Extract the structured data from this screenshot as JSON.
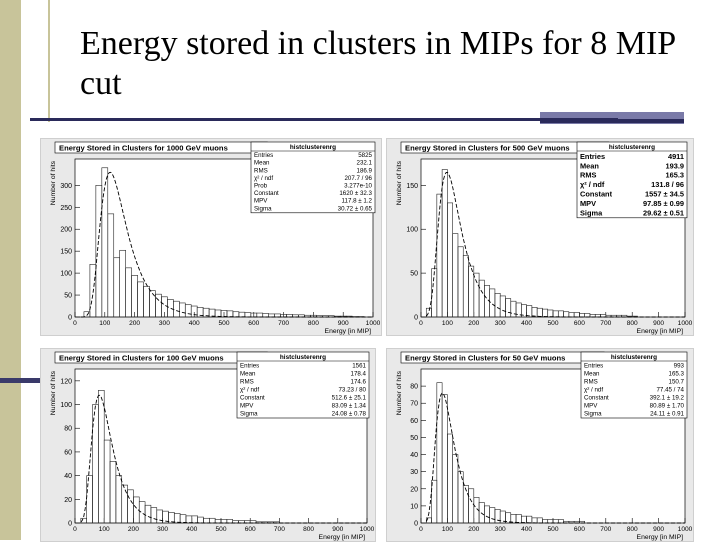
{
  "slide": {
    "title": "Energy stored in clusters in MIPs for 8 MIP cut"
  },
  "chart_data": [
    {
      "type": "bar",
      "title": "Energy Stored in Clusters for 1000 GeV muons",
      "histname": "histclusterenrg",
      "xlabel": "Energy [in MIP]",
      "ylabel": "Number of hits",
      "xlim": [
        0,
        1000
      ],
      "ylim": [
        0,
        360
      ],
      "xticks": [
        0,
        100,
        200,
        300,
        400,
        500,
        600,
        700,
        800,
        900,
        1000
      ],
      "yticks": [
        0,
        50,
        100,
        150,
        200,
        250,
        300
      ],
      "stats": [
        [
          "Entries",
          "5825"
        ],
        [
          "Mean",
          "232.1"
        ],
        [
          "RMS",
          "186.9"
        ],
        [
          "χ² / ndf",
          "207.7 / 96"
        ],
        [
          "Prob",
          "3.277e-10"
        ],
        [
          "Constant",
          "1620 ± 32.3"
        ],
        [
          "MPV",
          "117.8 ± 1.2"
        ],
        [
          "Sigma",
          "30.72 ± 0.65"
        ]
      ],
      "fit": {
        "mpv": 117.8,
        "sigma": 30.72,
        "peak": 330
      },
      "hist": [
        [
          40,
          12
        ],
        [
          60,
          120
        ],
        [
          80,
          300
        ],
        [
          100,
          340
        ],
        [
          120,
          235
        ],
        [
          140,
          135
        ],
        [
          160,
          152
        ],
        [
          180,
          112
        ],
        [
          200,
          95
        ],
        [
          220,
          80
        ],
        [
          240,
          70
        ],
        [
          260,
          60
        ],
        [
          280,
          52
        ],
        [
          300,
          46
        ],
        [
          320,
          40
        ],
        [
          340,
          36
        ],
        [
          360,
          32
        ],
        [
          380,
          28
        ],
        [
          400,
          25
        ],
        [
          420,
          22
        ],
        [
          440,
          20
        ],
        [
          460,
          18
        ],
        [
          480,
          16
        ],
        [
          500,
          15
        ],
        [
          520,
          14
        ],
        [
          540,
          12
        ],
        [
          560,
          11
        ],
        [
          580,
          10
        ],
        [
          600,
          9
        ],
        [
          620,
          9
        ],
        [
          640,
          8
        ],
        [
          660,
          7
        ],
        [
          680,
          7
        ],
        [
          700,
          6
        ],
        [
          720,
          6
        ],
        [
          740,
          5
        ],
        [
          760,
          5
        ],
        [
          780,
          4
        ],
        [
          800,
          4
        ],
        [
          820,
          3
        ],
        [
          840,
          3
        ],
        [
          860,
          3
        ],
        [
          880,
          2
        ],
        [
          900,
          2
        ],
        [
          920,
          2
        ],
        [
          940,
          1
        ],
        [
          960,
          1
        ]
      ]
    },
    {
      "type": "bar",
      "title": "Energy Stored in Clusters for 500 GeV muons",
      "histname": "histclusterenrg",
      "xlabel": "Energy [in MIP]",
      "ylabel": "Number of hits",
      "xlim": [
        0,
        1000
      ],
      "ylim": [
        0,
        180
      ],
      "xticks": [
        0,
        100,
        200,
        300,
        400,
        500,
        600,
        700,
        800,
        900,
        1000
      ],
      "yticks": [
        0,
        50,
        100,
        150
      ],
      "stats": [
        [
          "Entries",
          "4911"
        ],
        [
          "Mean",
          "193.9"
        ],
        [
          "RMS",
          "165.3"
        ],
        [
          "χ² / ndf",
          "131.8 / 96"
        ],
        [
          "Constant",
          "1557 ± 34.5"
        ],
        [
          "MPV",
          "97.85 ± 0.99"
        ],
        [
          "Sigma",
          "29.62 ± 0.51"
        ]
      ],
      "fit": {
        "mpv": 97.85,
        "sigma": 29.62,
        "peak": 165
      },
      "hist": [
        [
          30,
          10
        ],
        [
          50,
          55
        ],
        [
          70,
          140
        ],
        [
          90,
          168
        ],
        [
          110,
          130
        ],
        [
          130,
          95
        ],
        [
          150,
          80
        ],
        [
          170,
          70
        ],
        [
          190,
          58
        ],
        [
          210,
          50
        ],
        [
          230,
          42
        ],
        [
          250,
          36
        ],
        [
          270,
          32
        ],
        [
          290,
          27
        ],
        [
          310,
          24
        ],
        [
          330,
          21
        ],
        [
          350,
          18
        ],
        [
          370,
          16
        ],
        [
          390,
          14
        ],
        [
          410,
          13
        ],
        [
          430,
          11
        ],
        [
          450,
          10
        ],
        [
          470,
          9
        ],
        [
          490,
          8
        ],
        [
          510,
          7
        ],
        [
          530,
          7
        ],
        [
          550,
          6
        ],
        [
          570,
          5
        ],
        [
          590,
          5
        ],
        [
          610,
          4
        ],
        [
          630,
          4
        ],
        [
          650,
          3
        ],
        [
          670,
          3
        ],
        [
          690,
          3
        ],
        [
          710,
          2
        ],
        [
          730,
          2
        ],
        [
          750,
          2
        ],
        [
          770,
          2
        ],
        [
          790,
          1
        ],
        [
          810,
          1
        ]
      ]
    },
    {
      "type": "bar",
      "title": "Energy Stored in Clusters for 100  GeV muons",
      "histname": "histclusterenrg",
      "xlabel": "Energy [in MIP]",
      "ylabel": "Number of hits",
      "xlim": [
        0,
        1000
      ],
      "ylim": [
        0,
        130
      ],
      "xticks": [
        0,
        100,
        200,
        300,
        400,
        500,
        600,
        700,
        800,
        900,
        1000
      ],
      "yticks": [
        0,
        20,
        40,
        60,
        80,
        100,
        120
      ],
      "stats": [
        [
          "Entries",
          "1561"
        ],
        [
          "Mean",
          "178.4"
        ],
        [
          "RMS",
          "174.6"
        ],
        [
          "χ² / ndf",
          "73.23 / 80"
        ],
        [
          "Constant",
          "512.6 ± 25.1"
        ],
        [
          "MPV",
          "83.09 ± 1.34"
        ],
        [
          "Sigma",
          "24.08 ± 0.78"
        ]
      ],
      "fit": {
        "mpv": 83.09,
        "sigma": 24.08,
        "peak": 108
      },
      "hist": [
        [
          30,
          4
        ],
        [
          50,
          40
        ],
        [
          70,
          100
        ],
        [
          90,
          112
        ],
        [
          110,
          70
        ],
        [
          130,
          52
        ],
        [
          150,
          40
        ],
        [
          170,
          32
        ],
        [
          190,
          28
        ],
        [
          210,
          22
        ],
        [
          230,
          18
        ],
        [
          250,
          15
        ],
        [
          270,
          13
        ],
        [
          290,
          11
        ],
        [
          310,
          10
        ],
        [
          330,
          9
        ],
        [
          350,
          8
        ],
        [
          370,
          7
        ],
        [
          390,
          6
        ],
        [
          410,
          6
        ],
        [
          430,
          5
        ],
        [
          450,
          4
        ],
        [
          470,
          4
        ],
        [
          490,
          3
        ],
        [
          510,
          3
        ],
        [
          530,
          3
        ],
        [
          550,
          2
        ],
        [
          570,
          2
        ],
        [
          590,
          2
        ],
        [
          610,
          2
        ],
        [
          630,
          1
        ],
        [
          650,
          1
        ],
        [
          670,
          1
        ],
        [
          690,
          1
        ]
      ]
    },
    {
      "type": "bar",
      "title": "Energy Stored in Clusters for 50 GeV muons",
      "histname": "histclusterenrg",
      "xlabel": "Energy [in MIP]",
      "ylabel": "Number of hits",
      "xlim": [
        0,
        1000
      ],
      "ylim": [
        0,
        90
      ],
      "xticks": [
        0,
        100,
        200,
        300,
        400,
        500,
        600,
        700,
        800,
        900,
        1000
      ],
      "yticks": [
        0,
        10,
        20,
        30,
        40,
        50,
        60,
        70,
        80
      ],
      "stats": [
        [
          "Entries",
          "993"
        ],
        [
          "Mean",
          "165.3"
        ],
        [
          "RMS",
          "150.7"
        ],
        [
          "χ² / ndf",
          "77.45 / 74"
        ],
        [
          "Constant",
          "392.1 ± 19.2"
        ],
        [
          "MPV",
          "80.89 ± 1.70"
        ],
        [
          "Sigma",
          "24.11 ± 0.91"
        ]
      ],
      "fit": {
        "mpv": 80.89,
        "sigma": 24.11,
        "peak": 76
      },
      "hist": [
        [
          30,
          3
        ],
        [
          50,
          25
        ],
        [
          70,
          82
        ],
        [
          90,
          75
        ],
        [
          110,
          52
        ],
        [
          130,
          40
        ],
        [
          150,
          30
        ],
        [
          170,
          22
        ],
        [
          190,
          20
        ],
        [
          210,
          15
        ],
        [
          230,
          12
        ],
        [
          250,
          10
        ],
        [
          270,
          9
        ],
        [
          290,
          8
        ],
        [
          310,
          7
        ],
        [
          330,
          6
        ],
        [
          350,
          5
        ],
        [
          370,
          5
        ],
        [
          390,
          4
        ],
        [
          410,
          4
        ],
        [
          430,
          3
        ],
        [
          450,
          3
        ],
        [
          470,
          2
        ],
        [
          490,
          2
        ],
        [
          510,
          2
        ],
        [
          530,
          2
        ],
        [
          550,
          1
        ],
        [
          570,
          1
        ],
        [
          590,
          1
        ],
        [
          610,
          1
        ]
      ]
    }
  ]
}
